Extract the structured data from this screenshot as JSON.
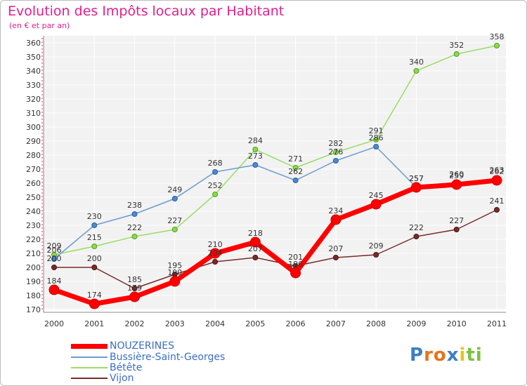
{
  "header": {
    "title": "Evolution des Impôts locaux par Habitant",
    "subtitle": "(en € et par an)"
  },
  "chart_data": {
    "type": "line",
    "title": "Evolution des Impôts locaux par Habitant",
    "subtitle": "(en € et par an)",
    "x": [
      "2000",
      "2001",
      "2002",
      "2003",
      "2004",
      "2005",
      "2006",
      "2007",
      "2008",
      "2009",
      "2010",
      "2011"
    ],
    "ylim": [
      170,
      360
    ],
    "yticks": [
      170,
      180,
      190,
      200,
      210,
      220,
      230,
      240,
      250,
      260,
      270,
      280,
      290,
      300,
      310,
      320,
      330,
      340,
      350,
      360
    ],
    "grid": true,
    "legend_position": "bottom-left",
    "series": [
      {
        "name": "NOUZERINES",
        "color": "#ff0000",
        "values": [
          184,
          174,
          179,
          190,
          210,
          218,
          196,
          234,
          245,
          257,
          259,
          262
        ]
      },
      {
        "name": "Bussière-Saint-Georges",
        "color": "#6b9cd0",
        "values": [
          206,
          230,
          238,
          249,
          268,
          273,
          262,
          276,
          286,
          257,
          260,
          263
        ]
      },
      {
        "name": "Bétête",
        "color": "#99dd66",
        "values": [
          209,
          215,
          222,
          227,
          252,
          284,
          271,
          282,
          291,
          340,
          352,
          358
        ]
      },
      {
        "name": "Vijon",
        "color": "#7a2a2a",
        "values": [
          200,
          200,
          185,
          195,
          204,
          207,
          201,
          207,
          209,
          222,
          227,
          241
        ]
      }
    ],
    "data_labels": [
      [
        "184",
        "174",
        "179",
        "190",
        "210",
        "218",
        "196",
        "234",
        "245",
        "257",
        "259",
        "262"
      ],
      [
        "206",
        "230",
        "238",
        "249",
        "268",
        "273",
        "262",
        "276",
        "286",
        "257",
        "260",
        "263"
      ],
      [
        "209",
        "215",
        "222",
        "227",
        "252",
        "284",
        "271",
        "282",
        "291",
        "340",
        "352",
        "358"
      ],
      [
        "200",
        "200",
        "185",
        "195",
        "204",
        "207",
        "201",
        "207",
        "209",
        "222",
        "227",
        "241"
      ]
    ]
  },
  "logo": {
    "letters": [
      "P",
      "r",
      "o",
      "x",
      "i",
      "t",
      "i"
    ],
    "colors": [
      "#3b7fc4",
      "#e8731c",
      "#e8731c",
      "#3b7fc4",
      "#e8c21c",
      "#7cc142",
      "#7cc142"
    ]
  }
}
